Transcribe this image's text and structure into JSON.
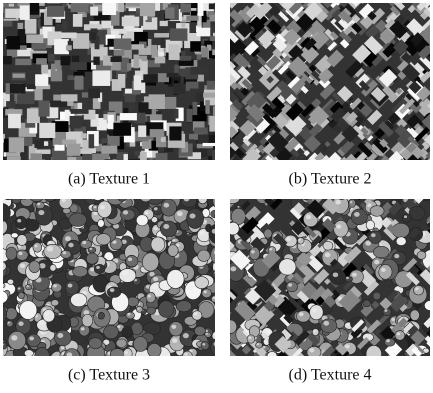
{
  "figure": {
    "panels": [
      {
        "caption": "(a) Texture 1"
      },
      {
        "caption": "(b) Texture 2"
      },
      {
        "caption": "(c) Texture 3"
      },
      {
        "caption": "(d) Texture 4"
      }
    ]
  }
}
